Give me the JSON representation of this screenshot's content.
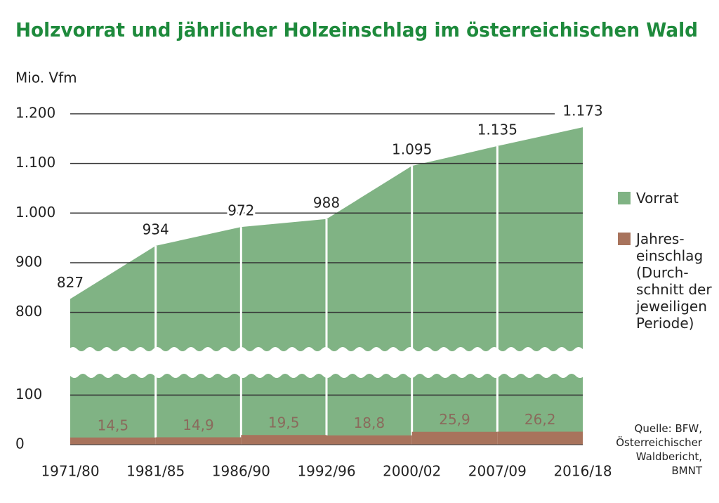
{
  "chart_data": {
    "type": "area",
    "title": "Holzvorrat und jährlicher Holzeinschlag im österreichischen Wald",
    "y_axis_label": "Mio. Vfm",
    "categories": [
      "1971/80",
      "1981/85",
      "1986/90",
      "1992/96",
      "2000/02",
      "2007/09",
      "2016/18"
    ],
    "series": [
      {
        "name": "Vorrat",
        "color": "#80b384",
        "values": [
          827,
          934,
          972,
          988,
          1095,
          1135,
          1173
        ],
        "value_labels": [
          "827",
          "934",
          "972",
          "988",
          "1.095",
          "1.135",
          "1.173"
        ]
      },
      {
        "name": "Jahres-\neinschlag\n(Durch-\nschnitt der\njeweiligen\nPeriode)",
        "color": "#a8735c",
        "values": [
          null,
          14.5,
          14.9,
          19.5,
          18.8,
          25.9,
          26.2
        ],
        "value_labels": [
          null,
          "14,5",
          "14,9",
          "19,5",
          "18,8",
          "25,9",
          "26,2"
        ]
      }
    ],
    "ylim": [
      0,
      1200
    ],
    "yticks": [
      0,
      100,
      800,
      900,
      {
        "value": 1000,
        "label": "1.000"
      },
      {
        "value": 1100,
        "label": "1.100"
      },
      {
        "value": 1200,
        "label": "1.200"
      }
    ],
    "axis_break": true,
    "grid": true,
    "legend": "right",
    "source": "Quelle: BFW,\nÖsterreichischer\nWaldbericht,\nBMNT"
  }
}
